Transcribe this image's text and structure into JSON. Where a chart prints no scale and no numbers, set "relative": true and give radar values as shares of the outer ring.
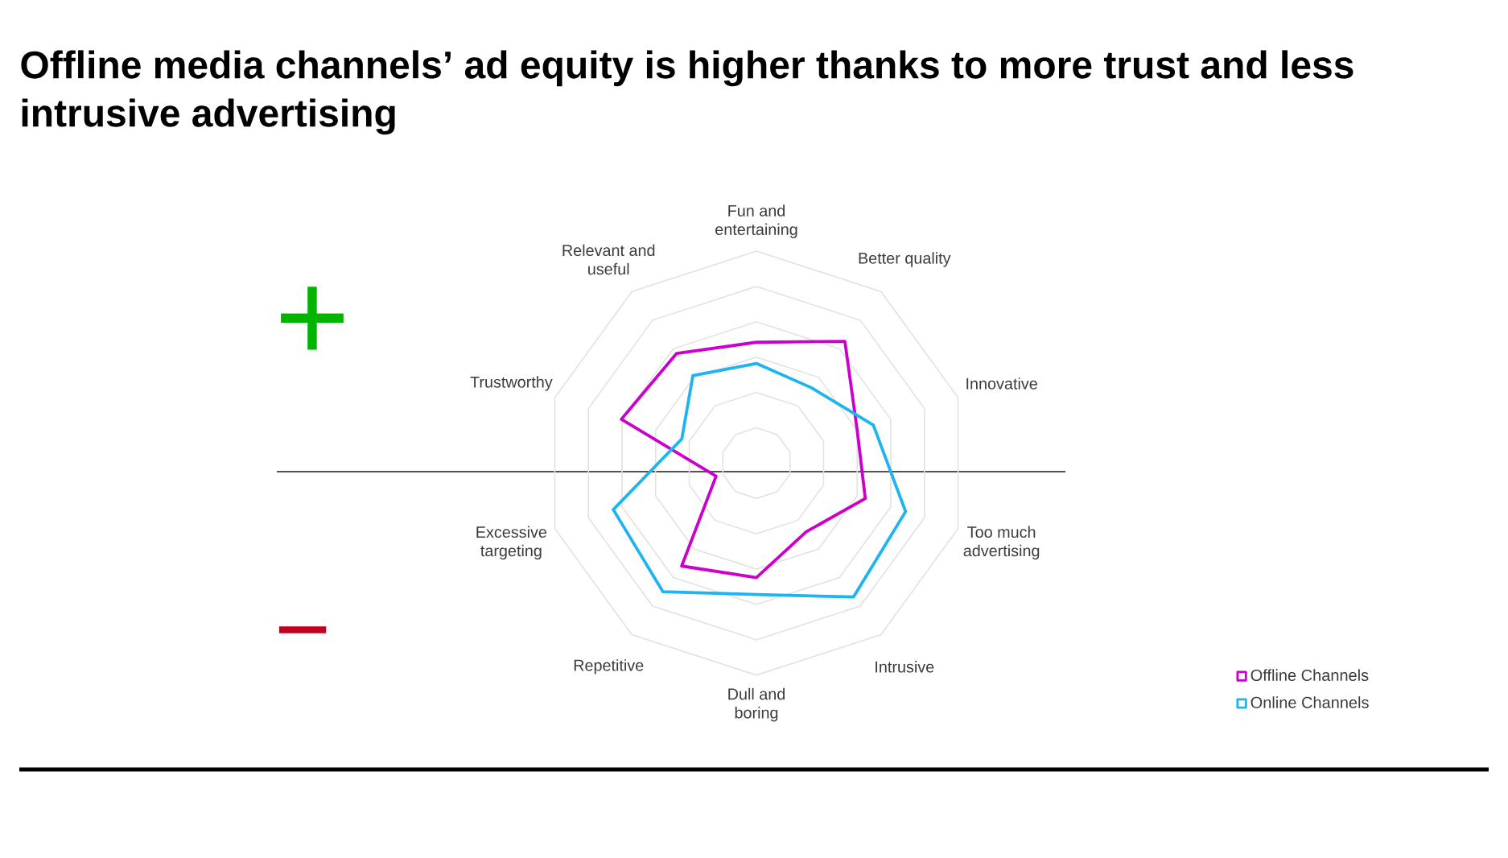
{
  "chart_data": {
    "type": "radar",
    "title": "Offline media channels’ ad equity is higher thanks to more trust and less intrusive advertising",
    "categories": [
      "Fun and entertaining",
      "Better quality",
      "Innovative",
      "Too much advertising",
      "Intrusive",
      "Dull and boring",
      "Repetitive",
      "Excessive targeting",
      "Trustworthy",
      "Relevant and useful"
    ],
    "relative": true,
    "grid": true,
    "legend": "bottom right",
    "annotations": [
      "+",
      "−"
    ],
    "series": [
      {
        "name": "Offline Channels",
        "color": "#cc00cc",
        "values": [
          0.57,
          0.71,
          0.5,
          0.54,
          0.4,
          0.54,
          0.6,
          0.2,
          0.67,
          0.64
        ]
      },
      {
        "name": "Online Channels",
        "color": "#1eb4f0",
        "values": [
          0.47,
          0.44,
          0.58,
          0.74,
          0.78,
          0.62,
          0.75,
          0.71,
          0.37,
          0.51
        ]
      }
    ]
  }
}
